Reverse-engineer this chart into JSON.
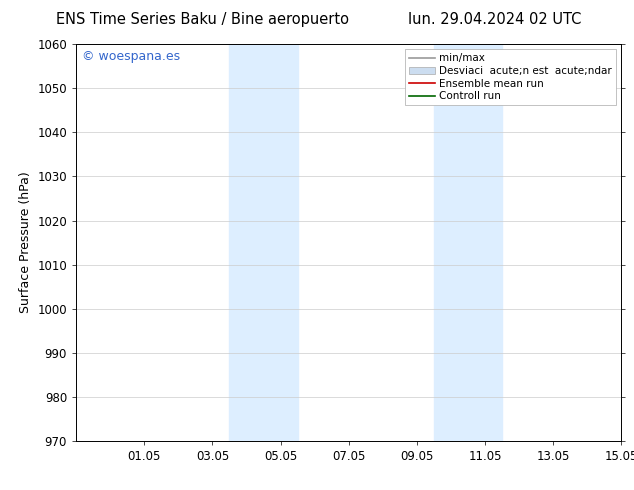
{
  "title_left": "ENS Time Series Baku / Bine aeropuerto",
  "title_right": "lun. 29.04.2024 02 UTC",
  "ylabel": "Surface Pressure (hPa)",
  "ylim": [
    970,
    1060
  ],
  "yticks": [
    970,
    980,
    990,
    1000,
    1010,
    1020,
    1030,
    1040,
    1050,
    1060
  ],
  "xtick_labels": [
    "01.05",
    "03.05",
    "05.05",
    "07.05",
    "09.05",
    "11.05",
    "13.05",
    "15.05"
  ],
  "xtick_positions": [
    2,
    4,
    6,
    8,
    10,
    12,
    14,
    16
  ],
  "xlim": [
    0,
    16
  ],
  "shaded_regions": [
    {
      "x_start": 4.5,
      "x_end": 6.5,
      "color": "#ddeeff"
    },
    {
      "x_start": 10.5,
      "x_end": 12.5,
      "color": "#ddeeff"
    }
  ],
  "watermark_text": "© woespana.es",
  "watermark_color": "#3366cc",
  "watermark_fontsize": 9,
  "legend_label_1": "min/max",
  "legend_label_2": "Desviaci  acute;n est  acute;ndar",
  "legend_label_3": "Ensemble mean run",
  "legend_label_4": "Controll run",
  "legend_color_1": "#999999",
  "legend_color_2": "#ccddf0",
  "legend_color_3": "#cc0000",
  "legend_color_4": "#006600",
  "bg_color": "#ffffff",
  "title_fontsize": 10.5,
  "axis_label_fontsize": 9,
  "tick_fontsize": 8.5,
  "legend_fontsize": 7.5,
  "grid_color": "#cccccc",
  "spine_color": "#000000"
}
